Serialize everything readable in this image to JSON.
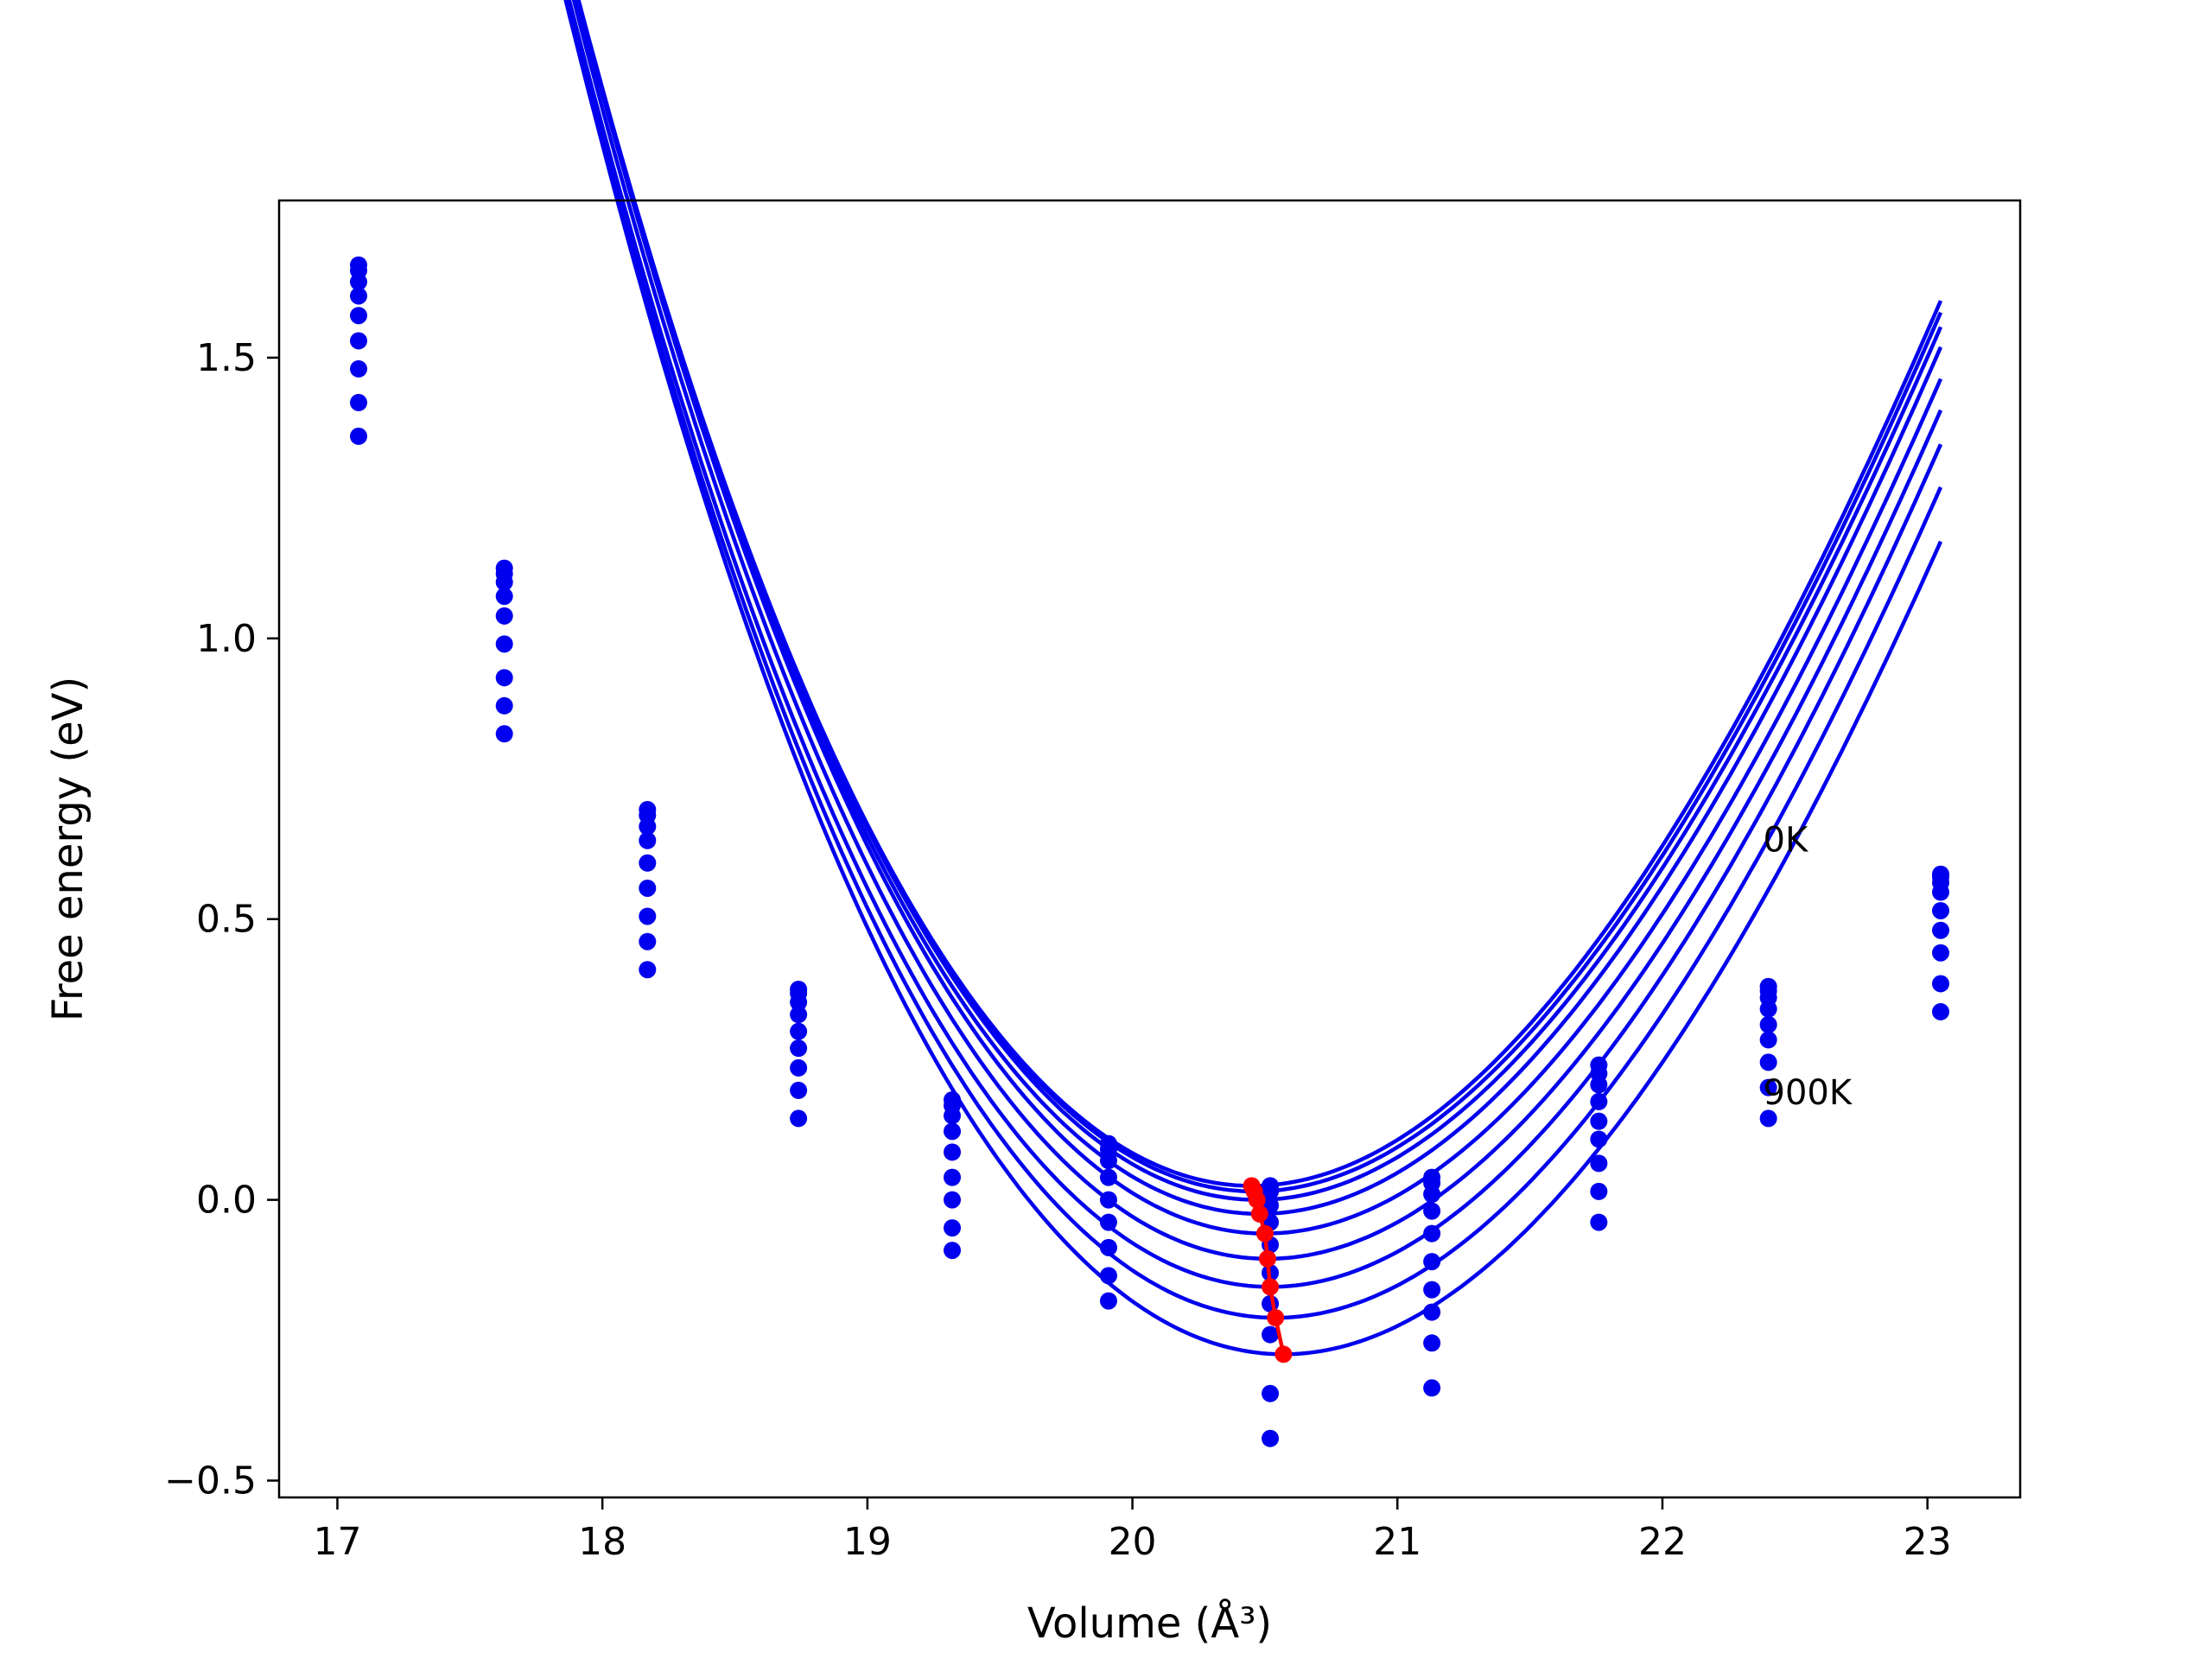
{
  "chart_data": {
    "type": "line",
    "title": "",
    "xlabel": "Volume (Å³)",
    "ylabel": "Free energy (eV)",
    "xlim": [
      16.78,
      23.35
    ],
    "ylim": [
      -0.53,
      1.78
    ],
    "xticks": [
      17,
      18,
      19,
      20,
      21,
      22,
      23
    ],
    "yticks": [
      -0.5,
      0.0,
      0.5,
      1.0,
      1.5
    ],
    "xtick_labels": [
      "17",
      "18",
      "19",
      "20",
      "21",
      "22",
      "23"
    ],
    "ytick_labels": [
      "−0.5",
      "0.0",
      "0.5",
      "1.0",
      "1.5"
    ],
    "grid": false,
    "legend": "none",
    "colors": {
      "curves": "#0000ee",
      "minima": "#ff0000",
      "axes": "#000000"
    },
    "annotations": [
      {
        "text": "0K",
        "x": 22.38,
        "y": 0.62
      },
      {
        "text": "900K",
        "x": 22.38,
        "y": 0.17
      }
    ],
    "volumes": [
      17.08,
      17.63,
      18.17,
      18.74,
      19.32,
      19.91,
      20.52,
      21.13,
      21.76,
      22.4,
      23.05
    ],
    "fitted_curves": [
      {
        "min_v": 20.45,
        "min_f": 0.025,
        "fit_a": 0.28,
        "fit_b": 0.018,
        "points": [
          1.665,
          1.125,
          0.695,
          0.375,
          0.178,
          0.1,
          0.025,
          0.04,
          0.24,
          0.38,
          0.58
        ]
      },
      {
        "min_v": 20.46,
        "min_f": 0.015,
        "fit_a": 0.28,
        "fit_b": 0.018,
        "points": [
          1.655,
          1.115,
          0.685,
          0.368,
          0.168,
          0.09,
          0.015,
          0.03,
          0.225,
          0.372,
          0.575
        ]
      },
      {
        "min_v": 20.47,
        "min_f": 0.0,
        "fit_a": 0.28,
        "fit_b": 0.018,
        "points": [
          1.635,
          1.1,
          0.665,
          0.352,
          0.15,
          0.07,
          -0.01,
          0.01,
          0.205,
          0.36,
          0.565
        ]
      },
      {
        "min_v": 20.48,
        "min_f": -0.025,
        "fit_a": 0.28,
        "fit_b": 0.018,
        "points": [
          1.61,
          1.075,
          0.64,
          0.33,
          0.122,
          0.04,
          -0.04,
          -0.02,
          0.175,
          0.34,
          0.548
        ]
      },
      {
        "min_v": 20.5,
        "min_f": -0.06,
        "fit_a": 0.28,
        "fit_b": 0.018,
        "points": [
          1.575,
          1.04,
          0.6,
          0.3,
          0.085,
          0.0,
          -0.08,
          -0.06,
          0.14,
          0.312,
          0.515
        ]
      },
      {
        "min_v": 20.51,
        "min_f": -0.105,
        "fit_a": 0.28,
        "fit_b": 0.018,
        "points": [
          1.53,
          0.99,
          0.555,
          0.27,
          0.04,
          -0.04,
          -0.13,
          -0.11,
          0.108,
          0.285,
          0.48
        ]
      },
      {
        "min_v": 20.52,
        "min_f": -0.155,
        "fit_a": 0.28,
        "fit_b": 0.018,
        "points": [
          1.48,
          0.93,
          0.505,
          0.235,
          0.0,
          -0.085,
          -0.185,
          -0.16,
          0.065,
          0.245,
          0.44
        ]
      },
      {
        "min_v": 20.54,
        "min_f": -0.21,
        "fit_a": 0.28,
        "fit_b": 0.018,
        "points": [
          1.42,
          0.88,
          0.46,
          0.195,
          -0.05,
          -0.135,
          -0.24,
          -0.2,
          0.015,
          0.2,
          0.385
        ]
      },
      {
        "min_v": 20.57,
        "min_f": -0.275,
        "fit_a": 0.28,
        "fit_b": 0.018,
        "points": [
          1.36,
          0.83,
          0.41,
          0.145,
          -0.09,
          -0.18,
          -0.345,
          -0.255,
          -0.04,
          0.145,
          0.335
        ]
      }
    ],
    "extra_points": [
      {
        "x": 20.52,
        "y": -0.425
      },
      {
        "x": 21.13,
        "y": -0.335
      }
    ],
    "minima_line": {
      "x": [
        20.45,
        20.46,
        20.47,
        20.48,
        20.5,
        20.51,
        20.52,
        20.54,
        20.57
      ],
      "y": [
        0.025,
        0.015,
        0.0,
        -0.025,
        -0.06,
        -0.105,
        -0.155,
        -0.21,
        -0.275
      ]
    }
  }
}
